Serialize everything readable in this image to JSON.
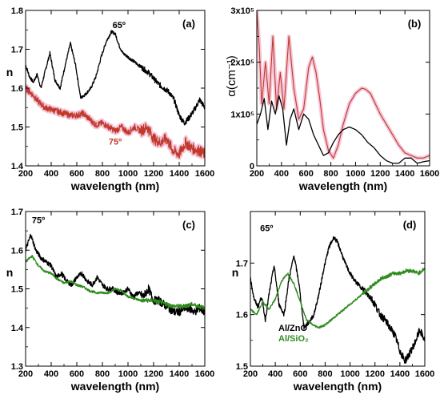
{
  "colors": {
    "black": "#000000",
    "red": "#c0392b",
    "red_glow": "#f3b8cf",
    "green": "#2e8b1e"
  },
  "chart_data": [
    {
      "id": "a",
      "type": "line",
      "panel_label": "(a)",
      "xlabel": "wavelength (nm)",
      "ylabel": "n",
      "xlim": [
        200,
        1600
      ],
      "ylim": [
        1.4,
        1.8
      ],
      "xticks": [
        200,
        400,
        600,
        800,
        1000,
        1200,
        1400,
        1600
      ],
      "yticks": [
        1.4,
        1.5,
        1.6,
        1.7,
        1.8
      ],
      "ytick_labels": [
        "1.4",
        "1.5",
        "1.6",
        "1.7",
        "1.8"
      ],
      "annotations": [
        {
          "text": "65º",
          "x": 930,
          "y": 1.755,
          "color": "black"
        },
        {
          "text": "75º",
          "x": 900,
          "y": 1.455,
          "color": "red"
        }
      ],
      "series": [
        {
          "color": "black",
          "noise": 0.004,
          "glow": false,
          "x": [
            200,
            230,
            260,
            290,
            320,
            350,
            390,
            430,
            470,
            510,
            550,
            590,
            630,
            670,
            710,
            750,
            790,
            830,
            870,
            900,
            930,
            960,
            1000,
            1040,
            1080,
            1120,
            1160,
            1200,
            1240,
            1280,
            1320,
            1360,
            1400,
            1440,
            1480,
            1520,
            1560,
            1600
          ],
          "y": [
            1.66,
            1.63,
            1.615,
            1.635,
            1.6,
            1.64,
            1.69,
            1.62,
            1.6,
            1.66,
            1.715,
            1.66,
            1.575,
            1.585,
            1.6,
            1.63,
            1.68,
            1.72,
            1.745,
            1.74,
            1.71,
            1.69,
            1.68,
            1.67,
            1.66,
            1.65,
            1.64,
            1.625,
            1.61,
            1.6,
            1.59,
            1.57,
            1.53,
            1.51,
            1.525,
            1.545,
            1.57,
            1.55
          ]
        },
        {
          "color": "red",
          "noise": 0.008,
          "glow": true,
          "x": [
            200,
            250,
            300,
            350,
            400,
            450,
            500,
            550,
            600,
            650,
            700,
            750,
            800,
            850,
            900,
            950,
            1000,
            1050,
            1100,
            1150,
            1200,
            1250,
            1300,
            1350,
            1400,
            1450,
            1500,
            1550,
            1600
          ],
          "y": [
            1.6,
            1.585,
            1.565,
            1.55,
            1.545,
            1.54,
            1.535,
            1.53,
            1.53,
            1.535,
            1.52,
            1.505,
            1.51,
            1.5,
            1.49,
            1.5,
            1.485,
            1.5,
            1.49,
            1.5,
            1.47,
            1.46,
            1.47,
            1.44,
            1.43,
            1.46,
            1.445,
            1.44,
            1.43
          ]
        }
      ]
    },
    {
      "id": "b",
      "type": "line",
      "panel_label": "(b)",
      "xlabel": "wavelength (nm)",
      "ylabel": "α(cm⁻¹)",
      "xlim": [
        200,
        1600
      ],
      "ylim": [
        0,
        300000
      ],
      "xticks": [
        200,
        400,
        600,
        800,
        1000,
        1200,
        1400,
        1600
      ],
      "yticks": [
        0,
        100000,
        200000,
        300000
      ],
      "ytick_labels": [
        "0",
        "1x10⁵",
        "2x10⁵",
        "3x10⁵"
      ],
      "series": [
        {
          "color": "red",
          "noise": 0,
          "glow": true,
          "x": [
            200,
            220,
            240,
            270,
            300,
            330,
            360,
            390,
            420,
            460,
            500,
            540,
            580,
            620,
            650,
            680,
            710,
            740,
            780,
            820,
            860,
            900,
            950,
            1000,
            1050,
            1080,
            1120,
            1160,
            1200,
            1250,
            1300,
            1350,
            1400,
            1450,
            1500,
            1550,
            1600
          ],
          "y": [
            300000,
            230000,
            120000,
            200000,
            120000,
            250000,
            110000,
            180000,
            110000,
            250000,
            150000,
            90000,
            110000,
            190000,
            210000,
            180000,
            130000,
            70000,
            30000,
            15000,
            40000,
            80000,
            120000,
            140000,
            150000,
            148000,
            140000,
            120000,
            100000,
            80000,
            60000,
            40000,
            25000,
            20000,
            15000,
            15000,
            20000
          ]
        },
        {
          "color": "black",
          "noise": 0,
          "glow": false,
          "x": [
            200,
            230,
            260,
            290,
            320,
            350,
            380,
            410,
            440,
            470,
            500,
            540,
            580,
            620,
            660,
            700,
            740,
            780,
            820,
            860,
            900,
            950,
            1000,
            1050,
            1100,
            1150,
            1200,
            1250,
            1300,
            1350,
            1400,
            1450,
            1500,
            1550,
            1600
          ],
          "y": [
            80000,
            100000,
            130000,
            70000,
            125000,
            100000,
            135000,
            110000,
            40000,
            90000,
            110000,
            70000,
            100000,
            90000,
            60000,
            40000,
            20000,
            25000,
            45000,
            60000,
            70000,
            75000,
            70000,
            60000,
            45000,
            35000,
            20000,
            10000,
            5000,
            5000,
            15000,
            15000,
            5000,
            8000,
            10000
          ]
        }
      ]
    },
    {
      "id": "c",
      "type": "line",
      "panel_label": "(c)",
      "xlabel": "wavelength (nm)",
      "ylabel": "n",
      "xlim": [
        200,
        1600
      ],
      "ylim": [
        1.3,
        1.7
      ],
      "xticks": [
        200,
        400,
        600,
        800,
        1000,
        1200,
        1400,
        1600
      ],
      "yticks": [
        1.3,
        1.4,
        1.5,
        1.6,
        1.7
      ],
      "ytick_labels": [
        "1.3",
        "1.4",
        "1.5",
        "1.6",
        "1.7"
      ],
      "annotations": [
        {
          "text": "75º",
          "x": 300,
          "y": 1.67,
          "color": "black"
        }
      ],
      "series": [
        {
          "color": "black",
          "noise": 0.006,
          "glow": false,
          "x": [
            200,
            240,
            280,
            320,
            360,
            400,
            440,
            480,
            520,
            560,
            600,
            640,
            680,
            720,
            760,
            800,
            840,
            880,
            920,
            960,
            1000,
            1040,
            1080,
            1120,
            1160,
            1200,
            1240,
            1280,
            1320,
            1360,
            1400,
            1440,
            1480,
            1520,
            1560,
            1600
          ],
          "y": [
            1.6,
            1.64,
            1.6,
            1.58,
            1.57,
            1.56,
            1.53,
            1.54,
            1.52,
            1.51,
            1.53,
            1.54,
            1.52,
            1.51,
            1.53,
            1.51,
            1.5,
            1.5,
            1.49,
            1.49,
            1.5,
            1.48,
            1.49,
            1.48,
            1.5,
            1.47,
            1.47,
            1.46,
            1.45,
            1.44,
            1.44,
            1.45,
            1.45,
            1.44,
            1.45,
            1.44
          ]
        },
        {
          "color": "green",
          "noise": 0.003,
          "glow": false,
          "x": [
            200,
            250,
            300,
            350,
            400,
            450,
            500,
            550,
            600,
            650,
            700,
            750,
            800,
            850,
            900,
            950,
            1000,
            1050,
            1100,
            1150,
            1200,
            1250,
            1300,
            1350,
            1400,
            1450,
            1500,
            1550,
            1600
          ],
          "y": [
            1.57,
            1.585,
            1.56,
            1.545,
            1.54,
            1.525,
            1.515,
            1.52,
            1.51,
            1.505,
            1.495,
            1.49,
            1.49,
            1.49,
            1.5,
            1.495,
            1.48,
            1.475,
            1.47,
            1.47,
            1.47,
            1.465,
            1.46,
            1.455,
            1.455,
            1.455,
            1.46,
            1.455,
            1.45
          ]
        }
      ]
    },
    {
      "id": "d",
      "type": "line",
      "panel_label": "(d)",
      "xlabel": "wavelength (nm)",
      "ylabel": "n",
      "xlim": [
        200,
        1600
      ],
      "ylim": [
        1.5,
        1.8
      ],
      "xticks": [
        200,
        400,
        600,
        800,
        1000,
        1200,
        1400,
        1600
      ],
      "yticks": [
        1.5,
        1.6,
        1.7
      ],
      "ytick_labels": [
        "1.5",
        "1.6",
        "1.7"
      ],
      "annotations": [
        {
          "text": "65º",
          "x": 330,
          "y": 1.762,
          "color": "black"
        }
      ],
      "legend": [
        {
          "label": "Al/ZnO",
          "color": "black"
        },
        {
          "label": "Al/SiO₂",
          "color": "green"
        }
      ],
      "series": [
        {
          "color": "black",
          "noise": 0.004,
          "glow": false,
          "x": [
            200,
            230,
            260,
            290,
            320,
            350,
            390,
            430,
            470,
            510,
            550,
            590,
            630,
            670,
            710,
            750,
            790,
            830,
            870,
            900,
            930,
            960,
            1000,
            1040,
            1080,
            1120,
            1160,
            1200,
            1240,
            1280,
            1320,
            1360,
            1400,
            1440,
            1480,
            1520,
            1560,
            1600
          ],
          "y": [
            1.67,
            1.63,
            1.615,
            1.635,
            1.59,
            1.64,
            1.695,
            1.62,
            1.6,
            1.67,
            1.715,
            1.66,
            1.575,
            1.585,
            1.6,
            1.64,
            1.69,
            1.73,
            1.75,
            1.74,
            1.72,
            1.7,
            1.68,
            1.665,
            1.655,
            1.645,
            1.635,
            1.62,
            1.6,
            1.59,
            1.575,
            1.56,
            1.53,
            1.51,
            1.525,
            1.545,
            1.57,
            1.55
          ]
        },
        {
          "color": "green",
          "noise": 0.002,
          "glow": false,
          "x": [
            200,
            250,
            300,
            350,
            400,
            450,
            500,
            550,
            600,
            650,
            700,
            750,
            800,
            850,
            900,
            950,
            1000,
            1050,
            1100,
            1150,
            1200,
            1250,
            1300,
            1350,
            1400,
            1450,
            1500,
            1550,
            1600
          ],
          "y": [
            1.61,
            1.6,
            1.625,
            1.61,
            1.63,
            1.665,
            1.68,
            1.66,
            1.625,
            1.59,
            1.58,
            1.575,
            1.58,
            1.59,
            1.6,
            1.61,
            1.62,
            1.63,
            1.64,
            1.65,
            1.66,
            1.67,
            1.675,
            1.68,
            1.68,
            1.685,
            1.685,
            1.68,
            1.69
          ]
        }
      ]
    }
  ]
}
